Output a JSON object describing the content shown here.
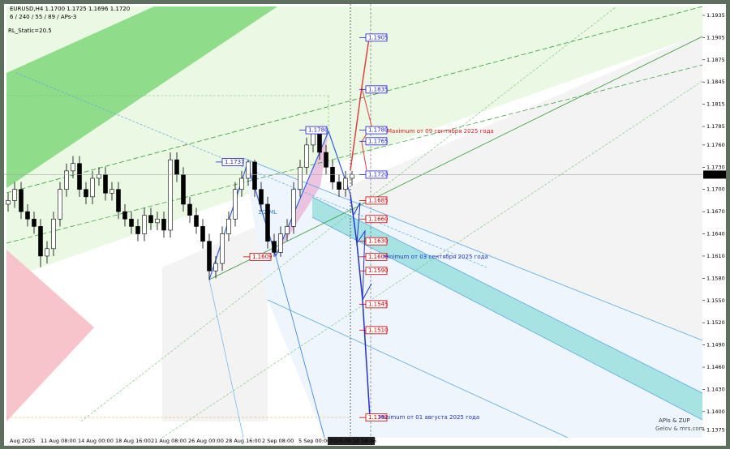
{
  "header": {
    "symbol_line": "EURUSD,H4  1.1700 1.1725 1.1696 1.1720",
    "params": "6 / 240 / 55 / 89 / APs-3",
    "rl_static": "RL_Static=20.5"
  },
  "chart_data": {
    "type": "candlestick",
    "up_color": "#ffffff",
    "down_color": "#000000",
    "open": [
      1.168,
      1.1685,
      1.17,
      1.167,
      1.166,
      1.165,
      1.161,
      1.162,
      1.166,
      1.17,
      1.1725,
      1.1735,
      1.17,
      1.169,
      1.1715,
      1.172,
      1.1695,
      1.17,
      1.167,
      1.166,
      1.165,
      1.164,
      1.1665,
      1.1655,
      1.166,
      1.1645,
      1.174,
      1.172,
      1.168,
      1.1665,
      1.165,
      1.163,
      1.159,
      1.16,
      1.164,
      1.166,
      1.17,
      1.1715,
      1.1737,
      1.17,
      1.168,
      1.163,
      1.1615,
      1.164,
      1.165,
      1.17,
      1.173,
      1.176,
      1.1775,
      1.175,
      1.173,
      1.171,
      1.17,
      1.1715
    ],
    "high": [
      1.1695,
      1.171,
      1.171,
      1.168,
      1.167,
      1.166,
      1.163,
      1.167,
      1.171,
      1.1735,
      1.1745,
      1.1745,
      1.171,
      1.1725,
      1.173,
      1.173,
      1.171,
      1.171,
      1.168,
      1.167,
      1.166,
      1.1675,
      1.1675,
      1.167,
      1.167,
      1.175,
      1.175,
      1.173,
      1.169,
      1.1675,
      1.166,
      1.164,
      1.161,
      1.165,
      1.167,
      1.171,
      1.1725,
      1.174,
      1.174,
      1.171,
      1.169,
      1.164,
      1.165,
      1.166,
      1.171,
      1.174,
      1.177,
      1.178,
      1.178,
      1.176,
      1.174,
      1.172,
      1.1725,
      1.1725
    ],
    "low": [
      1.167,
      1.1675,
      1.166,
      1.165,
      1.164,
      1.1595,
      1.16,
      1.161,
      1.165,
      1.169,
      1.1715,
      1.169,
      1.168,
      1.168,
      1.1705,
      1.1685,
      1.1685,
      1.166,
      1.165,
      1.164,
      1.163,
      1.163,
      1.1645,
      1.1645,
      1.1635,
      1.1635,
      1.171,
      1.167,
      1.1655,
      1.164,
      1.162,
      1.1578,
      1.158,
      1.159,
      1.163,
      1.165,
      1.169,
      1.1705,
      1.169,
      1.167,
      1.162,
      1.1609,
      1.1609,
      1.163,
      1.164,
      1.169,
      1.172,
      1.175,
      1.174,
      1.172,
      1.17,
      1.169,
      1.169,
      1.1705
    ],
    "close": [
      1.1685,
      1.17,
      1.167,
      1.166,
      1.165,
      1.161,
      1.162,
      1.166,
      1.17,
      1.1725,
      1.1735,
      1.17,
      1.169,
      1.1715,
      1.172,
      1.1695,
      1.17,
      1.167,
      1.166,
      1.165,
      1.164,
      1.1665,
      1.1655,
      1.166,
      1.1645,
      1.174,
      1.172,
      1.168,
      1.1665,
      1.165,
      1.163,
      1.159,
      1.16,
      1.164,
      1.166,
      1.17,
      1.1715,
      1.1737,
      1.17,
      1.168,
      1.163,
      1.1615,
      1.164,
      1.165,
      1.17,
      1.173,
      1.176,
      1.1775,
      1.175,
      1.173,
      1.171,
      1.17,
      1.1715,
      1.172
    ],
    "ylim": [
      1.1367,
      1.1947
    ],
    "yticks": [
      {
        "value": 1.1935,
        "label": "1.1935"
      },
      {
        "value": 1.1905,
        "label": "1.1905"
      },
      {
        "value": 1.1875,
        "label": "1.1875"
      },
      {
        "value": 1.1845,
        "label": "1.1845"
      },
      {
        "value": 1.1815,
        "label": "1.1815"
      },
      {
        "value": 1.1785,
        "label": "1.1785"
      },
      {
        "value": 1.176,
        "label": "1.1760"
      },
      {
        "value": 1.173,
        "label": "1.1730"
      },
      {
        "value": 1.17,
        "label": "1.1700"
      },
      {
        "value": 1.167,
        "label": "1.1670"
      },
      {
        "value": 1.164,
        "label": "1.1640"
      },
      {
        "value": 1.161,
        "label": "1.1610"
      },
      {
        "value": 1.158,
        "label": "1.1580"
      },
      {
        "value": 1.155,
        "label": "1.1550"
      },
      {
        "value": 1.152,
        "label": "1.1520"
      },
      {
        "value": 1.149,
        "label": "1.1490"
      },
      {
        "value": 1.146,
        "label": "1.1460"
      },
      {
        "value": 1.143,
        "label": "1.1430"
      },
      {
        "value": 1.14,
        "label": "1.1400"
      },
      {
        "value": 1.1375,
        "label": "1.1375"
      }
    ],
    "x_labels": [
      "Aug 2025",
      "11 Aug 08:00",
      "14 Aug 00:00",
      "18 Aug 16:00",
      "21 Aug 08:00",
      "26 Aug 00:00",
      "28 Aug 16:00",
      "2 Sep 08:00",
      "5 Sep 00:00",
      "2025.09.10 16:46"
    ],
    "current_price": {
      "value": 1.172,
      "label": "1.1720"
    },
    "levels": [
      {
        "value": 1.1905,
        "label": "1.1905",
        "color": "#2222cc"
      },
      {
        "value": 1.1835,
        "label": "1.1835",
        "color": "#2222cc"
      },
      {
        "value": 1.178,
        "label": "1.1780",
        "color": "#2222cc"
      },
      {
        "value": 1.1765,
        "label": "1.1765",
        "color": "#2222cc"
      },
      {
        "value": 1.172,
        "label": "1.1720",
        "color": "#2222cc"
      },
      {
        "value": 1.1685,
        "label": "1.1685",
        "color": "#cc0000"
      },
      {
        "value": 1.166,
        "label": "1.1660",
        "color": "#cc0000"
      },
      {
        "value": 1.163,
        "label": "1.1630",
        "color": "#cc0000"
      },
      {
        "value": 1.1609,
        "label": "1.1609",
        "color": "#cc0000"
      },
      {
        "value": 1.159,
        "label": "1.1590",
        "color": "#cc0000"
      },
      {
        "value": 1.1545,
        "label": "1.1545",
        "color": "#cc0000"
      },
      {
        "value": 1.151,
        "label": "1.1510",
        "color": "#cc0000"
      },
      {
        "value": 1.1392,
        "label": "1.1392",
        "color": "#cc0000"
      },
      {
        "value": 1.178,
        "label": "1.1780",
        "color": "#2222cc"
      },
      {
        "value": 1.1737,
        "label": "1.1737",
        "color": "#2222cc"
      },
      {
        "value": 1.1609,
        "label": "1.1609",
        "color": "#cc0000"
      }
    ],
    "annotations": [
      {
        "text": "Maximum от 09 сентября 2025 года",
        "color": "#dd2222"
      },
      {
        "text": "Minimum от 03 сентября 2025 года",
        "color": "#2233cc"
      },
      {
        "text": "Minimum от 01 августа 2025 года",
        "color": "#2233cc"
      }
    ],
    "pitchfork_label": "1/2 ML",
    "watermark": [
      "APIs & ZUP",
      "Gelov & mrs.com"
    ]
  }
}
